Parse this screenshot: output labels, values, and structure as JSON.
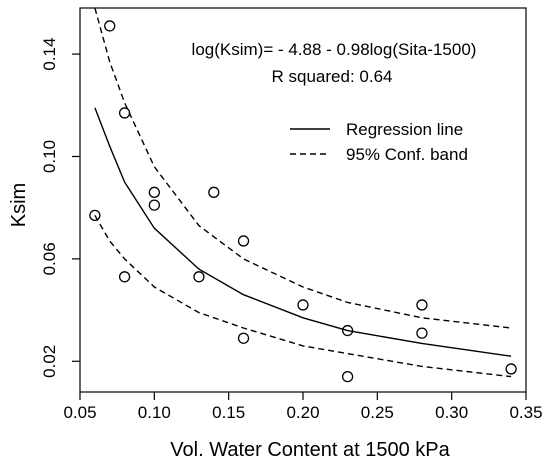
{
  "chart_data": {
    "type": "scatter",
    "xlabel": "Vol. Water Content at 1500 kPa",
    "ylabel": "Ksim",
    "xlim": [
      0.05,
      0.35
    ],
    "ylim": [
      0.008,
      0.158
    ],
    "x_ticks": [
      0.05,
      0.1,
      0.15,
      0.2,
      0.25,
      0.3,
      0.35
    ],
    "x_tick_labels": [
      "0.05",
      "0.10",
      "0.15",
      "0.20",
      "0.25",
      "0.30",
      "0.35"
    ],
    "y_ticks": [
      0.02,
      0.06,
      0.1,
      0.14
    ],
    "y_tick_labels": [
      "0.02",
      "0.06",
      "0.10",
      "0.14"
    ],
    "grid": false,
    "legend_position": "top-right",
    "annotations": [
      "log(Ksim)= - 4.88 - 0.98log(Sita-1500)",
      "R squared: 0.64"
    ],
    "points": {
      "x": [
        0.06,
        0.07,
        0.08,
        0.08,
        0.1,
        0.1,
        0.13,
        0.14,
        0.16,
        0.16,
        0.2,
        0.23,
        0.23,
        0.28,
        0.28,
        0.34
      ],
      "y": [
        0.077,
        0.151,
        0.117,
        0.053,
        0.086,
        0.081,
        0.053,
        0.086,
        0.067,
        0.029,
        0.042,
        0.032,
        0.014,
        0.042,
        0.031,
        0.017
      ]
    },
    "series": [
      {
        "name": "Regression line",
        "style": "solid",
        "x": [
          0.06,
          0.07,
          0.08,
          0.1,
          0.13,
          0.16,
          0.2,
          0.23,
          0.28,
          0.34
        ],
        "y": [
          0.119,
          0.104,
          0.09,
          0.072,
          0.056,
          0.046,
          0.037,
          0.032,
          0.027,
          0.022
        ]
      },
      {
        "name": "95% Conf. band",
        "style": "dashed",
        "x": [
          0.06,
          0.07,
          0.08,
          0.1,
          0.13,
          0.16,
          0.2,
          0.23,
          0.28,
          0.34
        ],
        "y": [
          0.158,
          0.137,
          0.121,
          0.096,
          0.073,
          0.06,
          0.049,
          0.043,
          0.037,
          0.033
        ]
      },
      {
        "name": "",
        "style": "dashed",
        "x": [
          0.06,
          0.07,
          0.08,
          0.1,
          0.13,
          0.16,
          0.2,
          0.23,
          0.28,
          0.34
        ],
        "y": [
          0.077,
          0.067,
          0.06,
          0.049,
          0.039,
          0.033,
          0.026,
          0.023,
          0.018,
          0.014
        ]
      }
    ],
    "colors": {
      "line": "#000000",
      "points": "#000000"
    }
  }
}
